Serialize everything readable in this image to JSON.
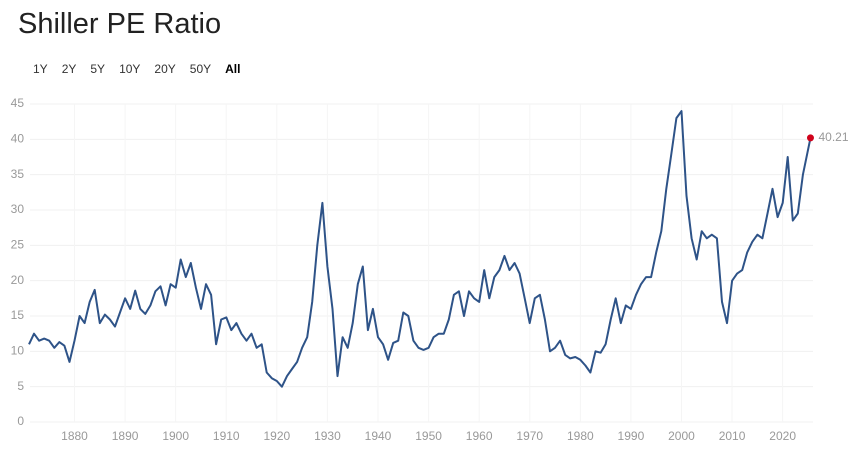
{
  "chart_data": {
    "type": "line",
    "title": "Shiller PE Ratio",
    "range_buttons": [
      "1Y",
      "2Y",
      "5Y",
      "10Y",
      "20Y",
      "50Y",
      "All"
    ],
    "selected_range": 6,
    "color": "#2e5388",
    "end_marker_color": "#d0021b",
    "grid": true,
    "xlim": [
      1871.2,
      2026
    ],
    "ylim": [
      0,
      45
    ],
    "xticks": [
      1880,
      1890,
      1900,
      1910,
      1920,
      1930,
      1940,
      1950,
      1960,
      1970,
      1980,
      1990,
      2000,
      2010,
      2020
    ],
    "yticks": [
      0,
      5,
      10,
      15,
      20,
      25,
      30,
      35,
      40,
      45
    ],
    "x": [
      1871,
      1872,
      1873,
      1874,
      1875,
      1876,
      1877,
      1878,
      1879,
      1880,
      1881,
      1882,
      1883,
      1884,
      1885,
      1886,
      1887,
      1888,
      1889,
      1890,
      1891,
      1892,
      1893,
      1894,
      1895,
      1896,
      1897,
      1898,
      1899,
      1900,
      1901,
      1902,
      1903,
      1904,
      1905,
      1906,
      1907,
      1908,
      1909,
      1910,
      1911,
      1912,
      1913,
      1914,
      1915,
      1916,
      1917,
      1918,
      1919,
      1920,
      1921,
      1922,
      1923,
      1924,
      1925,
      1926,
      1927,
      1928,
      1929,
      1930,
      1931,
      1932,
      1933,
      1934,
      1935,
      1936,
      1937,
      1938,
      1939,
      1940,
      1941,
      1942,
      1943,
      1944,
      1945,
      1946,
      1947,
      1948,
      1949,
      1950,
      1951,
      1952,
      1953,
      1954,
      1955,
      1956,
      1957,
      1958,
      1959,
      1960,
      1961,
      1962,
      1963,
      1964,
      1965,
      1966,
      1967,
      1968,
      1969,
      1970,
      1971,
      1972,
      1973,
      1974,
      1975,
      1976,
      1977,
      1978,
      1979,
      1980,
      1981,
      1982,
      1983,
      1984,
      1985,
      1986,
      1987,
      1988,
      1989,
      1990,
      1991,
      1992,
      1993,
      1994,
      1995,
      1996,
      1997,
      1998,
      1999,
      2000,
      2001,
      2002,
      2003,
      2004,
      2005,
      2006,
      2007,
      2008,
      2009,
      2010,
      2011,
      2012,
      2013,
      2014,
      2015,
      2016,
      2017,
      2018,
      2019,
      2020,
      2021,
      2022,
      2023,
      2024,
      2025.5
    ],
    "values": [
      11,
      12.5,
      11.5,
      11.8,
      11.5,
      10.5,
      11.3,
      10.8,
      8.5,
      11.5,
      15,
      14,
      17,
      18.7,
      14,
      15.2,
      14.5,
      13.5,
      15.5,
      17.5,
      16,
      18.6,
      16,
      15.3,
      16.5,
      18.5,
      19.2,
      16.5,
      19.5,
      19,
      23,
      20.5,
      22.5,
      19,
      16,
      19.5,
      18,
      11,
      14.5,
      14.8,
      13,
      14,
      12.5,
      11.5,
      12.5,
      10.5,
      11,
      7,
      6.2,
      5.8,
      5,
      6.5,
      7.5,
      8.5,
      10.5,
      12,
      17,
      25,
      31,
      22,
      16,
      6.5,
      12,
      10.5,
      14,
      19.5,
      22,
      13,
      16,
      12,
      11,
      8.8,
      11.2,
      11.5,
      15.5,
      15,
      11.5,
      10.5,
      10.2,
      10.5,
      12,
      12.5,
      12.5,
      14.5,
      18,
      18.5,
      15,
      18.5,
      17.5,
      17,
      21.5,
      17.5,
      20.5,
      21.5,
      23.5,
      21.5,
      22.5,
      21,
      17.5,
      14,
      17.5,
      18,
      14.5,
      10,
      10.5,
      11.5,
      9.5,
      9,
      9.2,
      8.8,
      8,
      7,
      10,
      9.8,
      11,
      14.5,
      17.5,
      14,
      16.5,
      16,
      18,
      19.5,
      20.5,
      20.5,
      24,
      27,
      33,
      38,
      43,
      44,
      32,
      26,
      23,
      27,
      26,
      26.5,
      26,
      17,
      14,
      20,
      21,
      21.5,
      24,
      25.5,
      26.5,
      26,
      29.5,
      33,
      29,
      31,
      37.5,
      28.5,
      29.5,
      35,
      40.21
    ]
  }
}
